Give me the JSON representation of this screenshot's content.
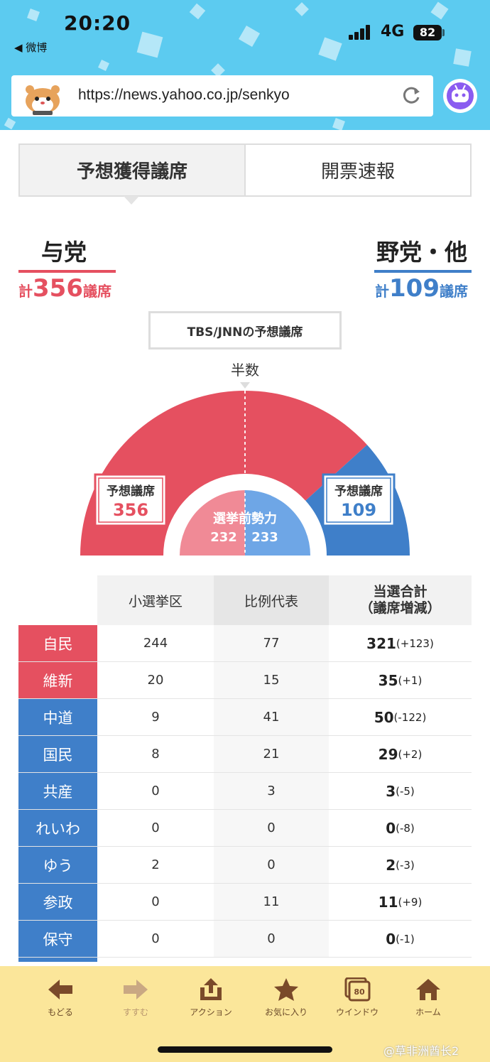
{
  "status_bar": {
    "time": "20:20",
    "back_app": "◀ 微博",
    "network": "4G",
    "battery": "82"
  },
  "browser": {
    "url": "https://news.yahoo.co.jp/senkyo"
  },
  "tabs": [
    {
      "label": "予想獲得議席",
      "active": true
    },
    {
      "label": "開票速報",
      "active": false
    }
  ],
  "ruling": {
    "title": "与党",
    "prefix": "計",
    "total": "356",
    "unit": "議席",
    "color": "#e55060"
  },
  "opposition": {
    "title": "野党・他",
    "prefix": "計",
    "total": "109",
    "unit": "議席",
    "color": "#3f7fc9"
  },
  "chart": {
    "source_label": "TBS/JNNの予想議席",
    "majority_label": "半数",
    "ruling_box": {
      "label": "予想議席",
      "value": "356"
    },
    "opposition_box": {
      "label": "予想議席",
      "value": "109"
    },
    "pre_election": {
      "label": "選挙前勢力",
      "ruling": "232",
      "opposition": "233"
    }
  },
  "chart_data": {
    "type": "pie",
    "shape": "half-donut",
    "slices": [
      {
        "name": "与党",
        "value": 356,
        "color": "#e55060"
      },
      {
        "name": "野党・他",
        "value": 109,
        "color": "#3f7fc9"
      }
    ],
    "inner_slices": [
      {
        "name": "与党",
        "value": 232,
        "color": "#f08a96"
      },
      {
        "name": "野党・他",
        "value": 233,
        "color": "#6ea6e6"
      }
    ]
  },
  "table": {
    "headers": {
      "single": "小選挙区",
      "pr": "比例代表",
      "total": "当選合計",
      "total_sub": "（議席増減）"
    },
    "rows": [
      {
        "party": "自民",
        "camp": "ruling",
        "single": "244",
        "pr": "77",
        "total": "321",
        "change": "(+123)"
      },
      {
        "party": "維新",
        "camp": "ruling",
        "single": "20",
        "pr": "15",
        "total": "35",
        "change": "(+1)"
      },
      {
        "party": "中道",
        "camp": "opposition",
        "single": "9",
        "pr": "41",
        "total": "50",
        "change": "(-122)"
      },
      {
        "party": "国民",
        "camp": "opposition",
        "single": "8",
        "pr": "21",
        "total": "29",
        "change": "(+2)"
      },
      {
        "party": "共産",
        "camp": "opposition",
        "single": "0",
        "pr": "3",
        "total": "3",
        "change": "(-5)"
      },
      {
        "party": "れいわ",
        "camp": "opposition",
        "single": "0",
        "pr": "0",
        "total": "0",
        "change": "(-8)"
      },
      {
        "party": "ゆう",
        "camp": "opposition",
        "single": "2",
        "pr": "0",
        "total": "2",
        "change": "(-3)"
      },
      {
        "party": "参政",
        "camp": "opposition",
        "single": "0",
        "pr": "11",
        "total": "11",
        "change": "(+9)"
      },
      {
        "party": "保守",
        "camp": "opposition",
        "single": "0",
        "pr": "0",
        "total": "0",
        "change": "(-1)"
      }
    ]
  },
  "toolbar": {
    "items": [
      {
        "label": "もどる",
        "icon": "back-arrow-icon"
      },
      {
        "label": "すすむ",
        "icon": "forward-arrow-icon"
      },
      {
        "label": "アクション",
        "icon": "share-icon"
      },
      {
        "label": "お気に入り",
        "icon": "star-icon"
      },
      {
        "label": "ウインドウ",
        "icon": "windows-icon",
        "badge": "80"
      },
      {
        "label": "ホーム",
        "icon": "home-icon"
      }
    ]
  },
  "watermark": "@草非洲酋长2"
}
